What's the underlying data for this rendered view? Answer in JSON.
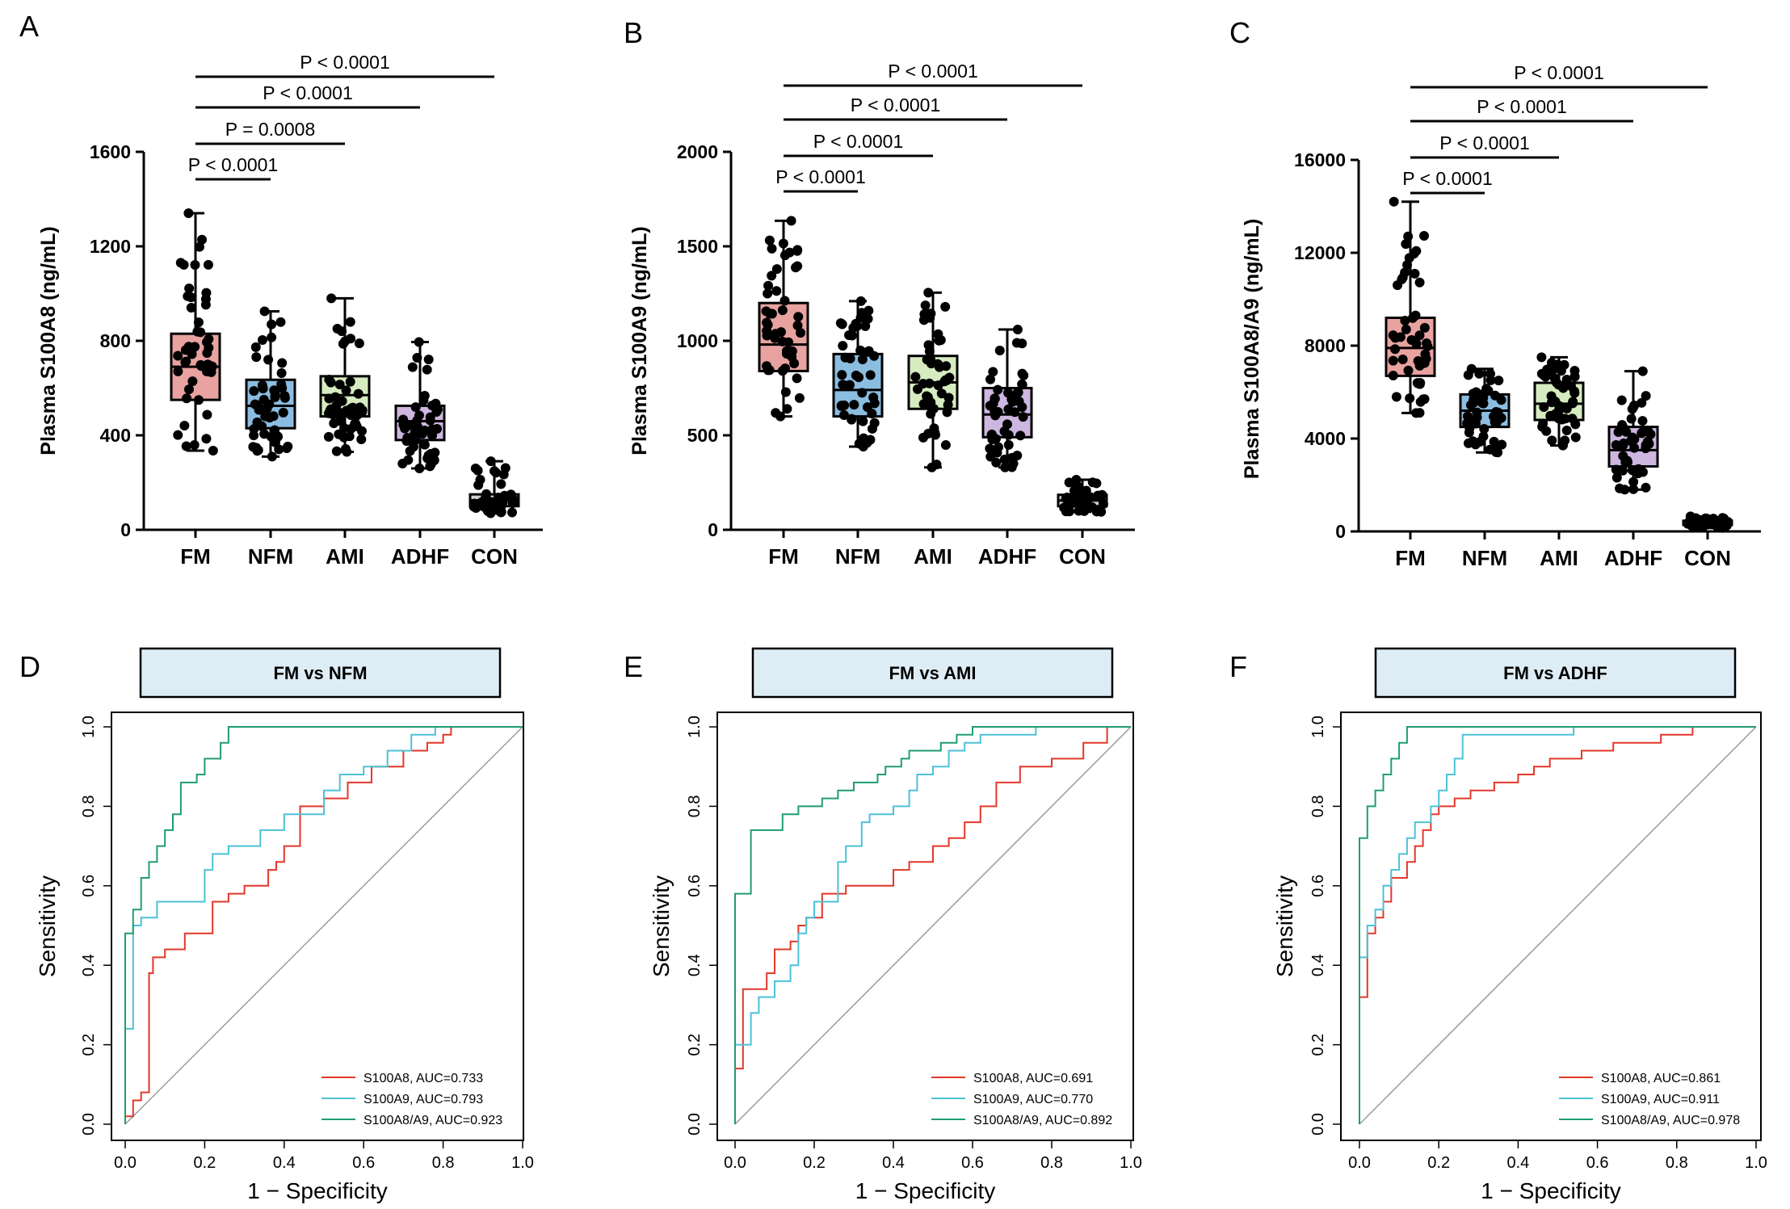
{
  "panels": {
    "A": {
      "label": "A"
    },
    "B": {
      "label": "B"
    },
    "C": {
      "label": "C"
    },
    "D": {
      "label": "D"
    },
    "E": {
      "label": "E"
    },
    "F": {
      "label": "F"
    }
  },
  "chart_data": [
    {
      "panel": "A",
      "type": "box",
      "ylabel": "Plasma S100A8 (ng/mL)",
      "ylim": [
        0,
        1600
      ],
      "yticks": [
        0,
        400,
        800,
        1200,
        1600
      ],
      "categories": [
        "FM",
        "NFM",
        "AMI",
        "ADHF",
        "CON"
      ],
      "colors": [
        "#e8a3a0",
        "#8bbde0",
        "#d6ecc0",
        "#cdb6df",
        "#d0d0d0"
      ],
      "boxes": [
        {
          "min": 335,
          "q1": 550,
          "median": 690,
          "q3": 830,
          "max": 1340
        },
        {
          "min": 310,
          "q1": 430,
          "median": 525,
          "q3": 635,
          "max": 925
        },
        {
          "min": 330,
          "q1": 480,
          "median": 570,
          "q3": 650,
          "max": 980
        },
        {
          "min": 260,
          "q1": 380,
          "median": 460,
          "q3": 525,
          "max": 795
        },
        {
          "min": 70,
          "q1": 100,
          "median": 125,
          "q3": 150,
          "max": 290
        }
      ],
      "comparisons": [
        {
          "from": "FM",
          "to": "NFM",
          "text": "P < 0.0001"
        },
        {
          "from": "FM",
          "to": "AMI",
          "text": "P = 0.0008"
        },
        {
          "from": "FM",
          "to": "ADHF",
          "text": "P < 0.0001"
        },
        {
          "from": "FM",
          "to": "CON",
          "text": "P < 0.0001"
        }
      ]
    },
    {
      "panel": "B",
      "type": "box",
      "ylabel": "Plasma S100A9 (ng/mL)",
      "ylim": [
        0,
        2000
      ],
      "yticks": [
        0,
        500,
        1000,
        1500,
        2000
      ],
      "categories": [
        "FM",
        "NFM",
        "AMI",
        "ADHF",
        "CON"
      ],
      "colors": [
        "#e8a3a0",
        "#8bbde0",
        "#d6ecc0",
        "#cdb6df",
        "#d0d0d0"
      ],
      "boxes": [
        {
          "min": 600,
          "q1": 840,
          "median": 980,
          "q3": 1200,
          "max": 1635
        },
        {
          "min": 440,
          "q1": 600,
          "median": 740,
          "q3": 930,
          "max": 1210
        },
        {
          "min": 330,
          "q1": 640,
          "median": 780,
          "q3": 920,
          "max": 1255
        },
        {
          "min": 330,
          "q1": 490,
          "median": 610,
          "q3": 750,
          "max": 1060
        },
        {
          "min": 95,
          "q1": 125,
          "median": 155,
          "q3": 185,
          "max": 265
        }
      ],
      "comparisons": [
        {
          "from": "FM",
          "to": "NFM",
          "text": "P < 0.0001"
        },
        {
          "from": "FM",
          "to": "AMI",
          "text": "P < 0.0001"
        },
        {
          "from": "FM",
          "to": "ADHF",
          "text": "P < 0.0001"
        },
        {
          "from": "FM",
          "to": "CON",
          "text": "P < 0.0001"
        }
      ]
    },
    {
      "panel": "C",
      "type": "box",
      "ylabel": "Plasma S100A8/A9 (ng/mL)",
      "ylim": [
        0,
        16000
      ],
      "yticks": [
        0,
        4000,
        8000,
        12000,
        16000
      ],
      "categories": [
        "FM",
        "NFM",
        "AMI",
        "ADHF",
        "CON"
      ],
      "colors": [
        "#e8a3a0",
        "#8bbde0",
        "#d6ecc0",
        "#cdb6df",
        "#d0d0d0"
      ],
      "boxes": [
        {
          "min": 5100,
          "q1": 6700,
          "median": 7900,
          "q3": 9200,
          "max": 14200
        },
        {
          "min": 3400,
          "q1": 4500,
          "median": 5200,
          "q3": 5900,
          "max": 7000
        },
        {
          "min": 3700,
          "q1": 4800,
          "median": 5500,
          "q3": 6400,
          "max": 7500
        },
        {
          "min": 1800,
          "q1": 2800,
          "median": 3500,
          "q3": 4500,
          "max": 6900
        },
        {
          "min": 150,
          "q1": 280,
          "median": 360,
          "q3": 460,
          "max": 650
        }
      ],
      "comparisons": [
        {
          "from": "FM",
          "to": "NFM",
          "text": "P < 0.0001"
        },
        {
          "from": "FM",
          "to": "AMI",
          "text": "P < 0.0001"
        },
        {
          "from": "FM",
          "to": "ADHF",
          "text": "P < 0.0001"
        },
        {
          "from": "FM",
          "to": "CON",
          "text": "P < 0.0001"
        }
      ]
    },
    {
      "panel": "D",
      "type": "line",
      "title": "FM vs  NFM",
      "xlabel": "1 − Specificity",
      "ylabel": "Sensitivity",
      "xlim": [
        0,
        1
      ],
      "ylim": [
        0,
        1
      ],
      "ticks": [
        "0.0",
        "0.2",
        "0.4",
        "0.6",
        "0.8",
        "1.0"
      ],
      "series": [
        {
          "name": "S100A8, AUC=0.733",
          "color": "#e3372a",
          "points": [
            [
              0,
              0
            ],
            [
              0.02,
              0.02
            ],
            [
              0.04,
              0.06
            ],
            [
              0.06,
              0.08
            ],
            [
              0.06,
              0.3
            ],
            [
              0.07,
              0.38
            ],
            [
              0.1,
              0.42
            ],
            [
              0.12,
              0.44
            ],
            [
              0.15,
              0.44
            ],
            [
              0.18,
              0.48
            ],
            [
              0.22,
              0.48
            ],
            [
              0.22,
              0.52
            ],
            [
              0.26,
              0.56
            ],
            [
              0.3,
              0.58
            ],
            [
              0.36,
              0.6
            ],
            [
              0.38,
              0.64
            ],
            [
              0.4,
              0.66
            ],
            [
              0.44,
              0.7
            ],
            [
              0.44,
              0.78
            ],
            [
              0.5,
              0.8
            ],
            [
              0.56,
              0.82
            ],
            [
              0.62,
              0.86
            ],
            [
              0.7,
              0.9
            ],
            [
              0.76,
              0.94
            ],
            [
              0.8,
              0.96
            ],
            [
              0.82,
              0.98
            ],
            [
              0.82,
              1
            ],
            [
              1,
              1
            ]
          ]
        },
        {
          "name": "S100A9, AUC=0.793",
          "color": "#4cc2d6",
          "points": [
            [
              0,
              0
            ],
            [
              0.02,
              0.24
            ],
            [
              0.02,
              0.46
            ],
            [
              0.04,
              0.5
            ],
            [
              0.08,
              0.52
            ],
            [
              0.1,
              0.56
            ],
            [
              0.2,
              0.56
            ],
            [
              0.22,
              0.64
            ],
            [
              0.26,
              0.68
            ],
            [
              0.34,
              0.7
            ],
            [
              0.4,
              0.74
            ],
            [
              0.46,
              0.78
            ],
            [
              0.5,
              0.78
            ],
            [
              0.54,
              0.84
            ],
            [
              0.6,
              0.88
            ],
            [
              0.66,
              0.9
            ],
            [
              0.72,
              0.94
            ],
            [
              0.78,
              0.98
            ],
            [
              0.82,
              1
            ],
            [
              1,
              1
            ]
          ]
        },
        {
          "name": "S100A8/A9, AUC=0.923",
          "color": "#1f9e6e",
          "points": [
            [
              0,
              0
            ],
            [
              0,
              0.42
            ],
            [
              0.02,
              0.48
            ],
            [
              0.04,
              0.54
            ],
            [
              0.06,
              0.62
            ],
            [
              0.08,
              0.66
            ],
            [
              0.1,
              0.7
            ],
            [
              0.12,
              0.74
            ],
            [
              0.14,
              0.78
            ],
            [
              0.14,
              0.82
            ],
            [
              0.18,
              0.86
            ],
            [
              0.2,
              0.88
            ],
            [
              0.24,
              0.92
            ],
            [
              0.26,
              0.96
            ],
            [
              0.28,
              1
            ],
            [
              1,
              1
            ]
          ]
        }
      ]
    },
    {
      "panel": "E",
      "type": "line",
      "title": "FM vs  AMI",
      "xlabel": "1 − Specificity",
      "ylabel": "Sensitivity",
      "xlim": [
        0,
        1
      ],
      "ylim": [
        0,
        1
      ],
      "ticks": [
        "0.0",
        "0.2",
        "0.4",
        "0.6",
        "0.8",
        "1.0"
      ],
      "series": [
        {
          "name": "S100A8, AUC=0.691",
          "color": "#e3372a",
          "points": [
            [
              0,
              0
            ],
            [
              0,
              0.14
            ],
            [
              0.02,
              0.14
            ],
            [
              0.02,
              0.26
            ],
            [
              0.04,
              0.34
            ],
            [
              0.08,
              0.34
            ],
            [
              0.1,
              0.38
            ],
            [
              0.14,
              0.44
            ],
            [
              0.16,
              0.46
            ],
            [
              0.18,
              0.5
            ],
            [
              0.22,
              0.52
            ],
            [
              0.28,
              0.58
            ],
            [
              0.32,
              0.6
            ],
            [
              0.4,
              0.6
            ],
            [
              0.44,
              0.64
            ],
            [
              0.5,
              0.66
            ],
            [
              0.54,
              0.7
            ],
            [
              0.58,
              0.72
            ],
            [
              0.62,
              0.76
            ],
            [
              0.66,
              0.8
            ],
            [
              0.72,
              0.86
            ],
            [
              0.8,
              0.9
            ],
            [
              0.88,
              0.92
            ],
            [
              0.94,
              0.96
            ],
            [
              0.98,
              1
            ],
            [
              1,
              1
            ]
          ]
        },
        {
          "name": "S100A9, AUC=0.770",
          "color": "#4cc2d6",
          "points": [
            [
              0,
              0
            ],
            [
              0,
              0.2
            ],
            [
              0.04,
              0.2
            ],
            [
              0.04,
              0.26
            ],
            [
              0.06,
              0.28
            ],
            [
              0.1,
              0.32
            ],
            [
              0.14,
              0.36
            ],
            [
              0.16,
              0.4
            ],
            [
              0.18,
              0.48
            ],
            [
              0.2,
              0.52
            ],
            [
              0.26,
              0.56
            ],
            [
              0.28,
              0.66
            ],
            [
              0.32,
              0.7
            ],
            [
              0.34,
              0.76
            ],
            [
              0.4,
              0.78
            ],
            [
              0.44,
              0.8
            ],
            [
              0.46,
              0.84
            ],
            [
              0.5,
              0.88
            ],
            [
              0.54,
              0.9
            ],
            [
              0.58,
              0.94
            ],
            [
              0.62,
              0.96
            ],
            [
              0.68,
              0.98
            ],
            [
              0.76,
              0.98
            ],
            [
              0.78,
              1
            ],
            [
              1,
              1
            ]
          ]
        },
        {
          "name": "S100A8/A9, AUC=0.892",
          "color": "#1f9e6e",
          "points": [
            [
              0,
              0
            ],
            [
              0,
              0.58
            ],
            [
              0.04,
              0.58
            ],
            [
              0.04,
              0.68
            ],
            [
              0.06,
              0.74
            ],
            [
              0.12,
              0.74
            ],
            [
              0.16,
              0.78
            ],
            [
              0.22,
              0.8
            ],
            [
              0.26,
              0.82
            ],
            [
              0.3,
              0.84
            ],
            [
              0.36,
              0.86
            ],
            [
              0.38,
              0.88
            ],
            [
              0.42,
              0.9
            ],
            [
              0.44,
              0.92
            ],
            [
              0.52,
              0.94
            ],
            [
              0.56,
              0.96
            ],
            [
              0.6,
              0.98
            ],
            [
              0.66,
              1
            ],
            [
              1,
              1
            ]
          ]
        }
      ]
    },
    {
      "panel": "F",
      "type": "line",
      "title": "FM vs  ADHF",
      "xlabel": "1 − Specificity",
      "ylabel": "Sensitivity",
      "xlim": [
        0,
        1
      ],
      "ylim": [
        0,
        1
      ],
      "ticks": [
        "0.0",
        "0.2",
        "0.4",
        "0.6",
        "0.8",
        "1.0"
      ],
      "series": [
        {
          "name": "S100A8, AUC=0.861",
          "color": "#e3372a",
          "points": [
            [
              0,
              0
            ],
            [
              0,
              0.32
            ],
            [
              0.02,
              0.32
            ],
            [
              0.02,
              0.44
            ],
            [
              0.04,
              0.48
            ],
            [
              0.06,
              0.52
            ],
            [
              0.08,
              0.56
            ],
            [
              0.08,
              0.6
            ],
            [
              0.12,
              0.62
            ],
            [
              0.14,
              0.66
            ],
            [
              0.16,
              0.7
            ],
            [
              0.18,
              0.74
            ],
            [
              0.2,
              0.78
            ],
            [
              0.24,
              0.8
            ],
            [
              0.28,
              0.82
            ],
            [
              0.34,
              0.84
            ],
            [
              0.4,
              0.86
            ],
            [
              0.44,
              0.88
            ],
            [
              0.48,
              0.9
            ],
            [
              0.56,
              0.92
            ],
            [
              0.64,
              0.94
            ],
            [
              0.76,
              0.96
            ],
            [
              0.84,
              0.98
            ],
            [
              0.88,
              1
            ],
            [
              1,
              1
            ]
          ]
        },
        {
          "name": "S100A9, AUC=0.911",
          "color": "#4cc2d6",
          "points": [
            [
              0,
              0
            ],
            [
              0,
              0.42
            ],
            [
              0.02,
              0.42
            ],
            [
              0.04,
              0.5
            ],
            [
              0.06,
              0.54
            ],
            [
              0.08,
              0.6
            ],
            [
              0.1,
              0.64
            ],
            [
              0.12,
              0.68
            ],
            [
              0.14,
              0.72
            ],
            [
              0.18,
              0.76
            ],
            [
              0.2,
              0.8
            ],
            [
              0.22,
              0.84
            ],
            [
              0.24,
              0.88
            ],
            [
              0.26,
              0.92
            ],
            [
              0.28,
              0.98
            ],
            [
              0.54,
              0.98
            ],
            [
              0.56,
              1
            ],
            [
              1,
              1
            ]
          ]
        },
        {
          "name": "S100A8/A9, AUC=0.978",
          "color": "#1f9e6e",
          "points": [
            [
              0,
              0
            ],
            [
              0,
              0.72
            ],
            [
              0.02,
              0.72
            ],
            [
              0.02,
              0.76
            ],
            [
              0.04,
              0.8
            ],
            [
              0.06,
              0.84
            ],
            [
              0.08,
              0.88
            ],
            [
              0.1,
              0.92
            ],
            [
              0.12,
              0.96
            ],
            [
              0.14,
              1
            ],
            [
              1,
              1
            ]
          ]
        }
      ]
    }
  ]
}
